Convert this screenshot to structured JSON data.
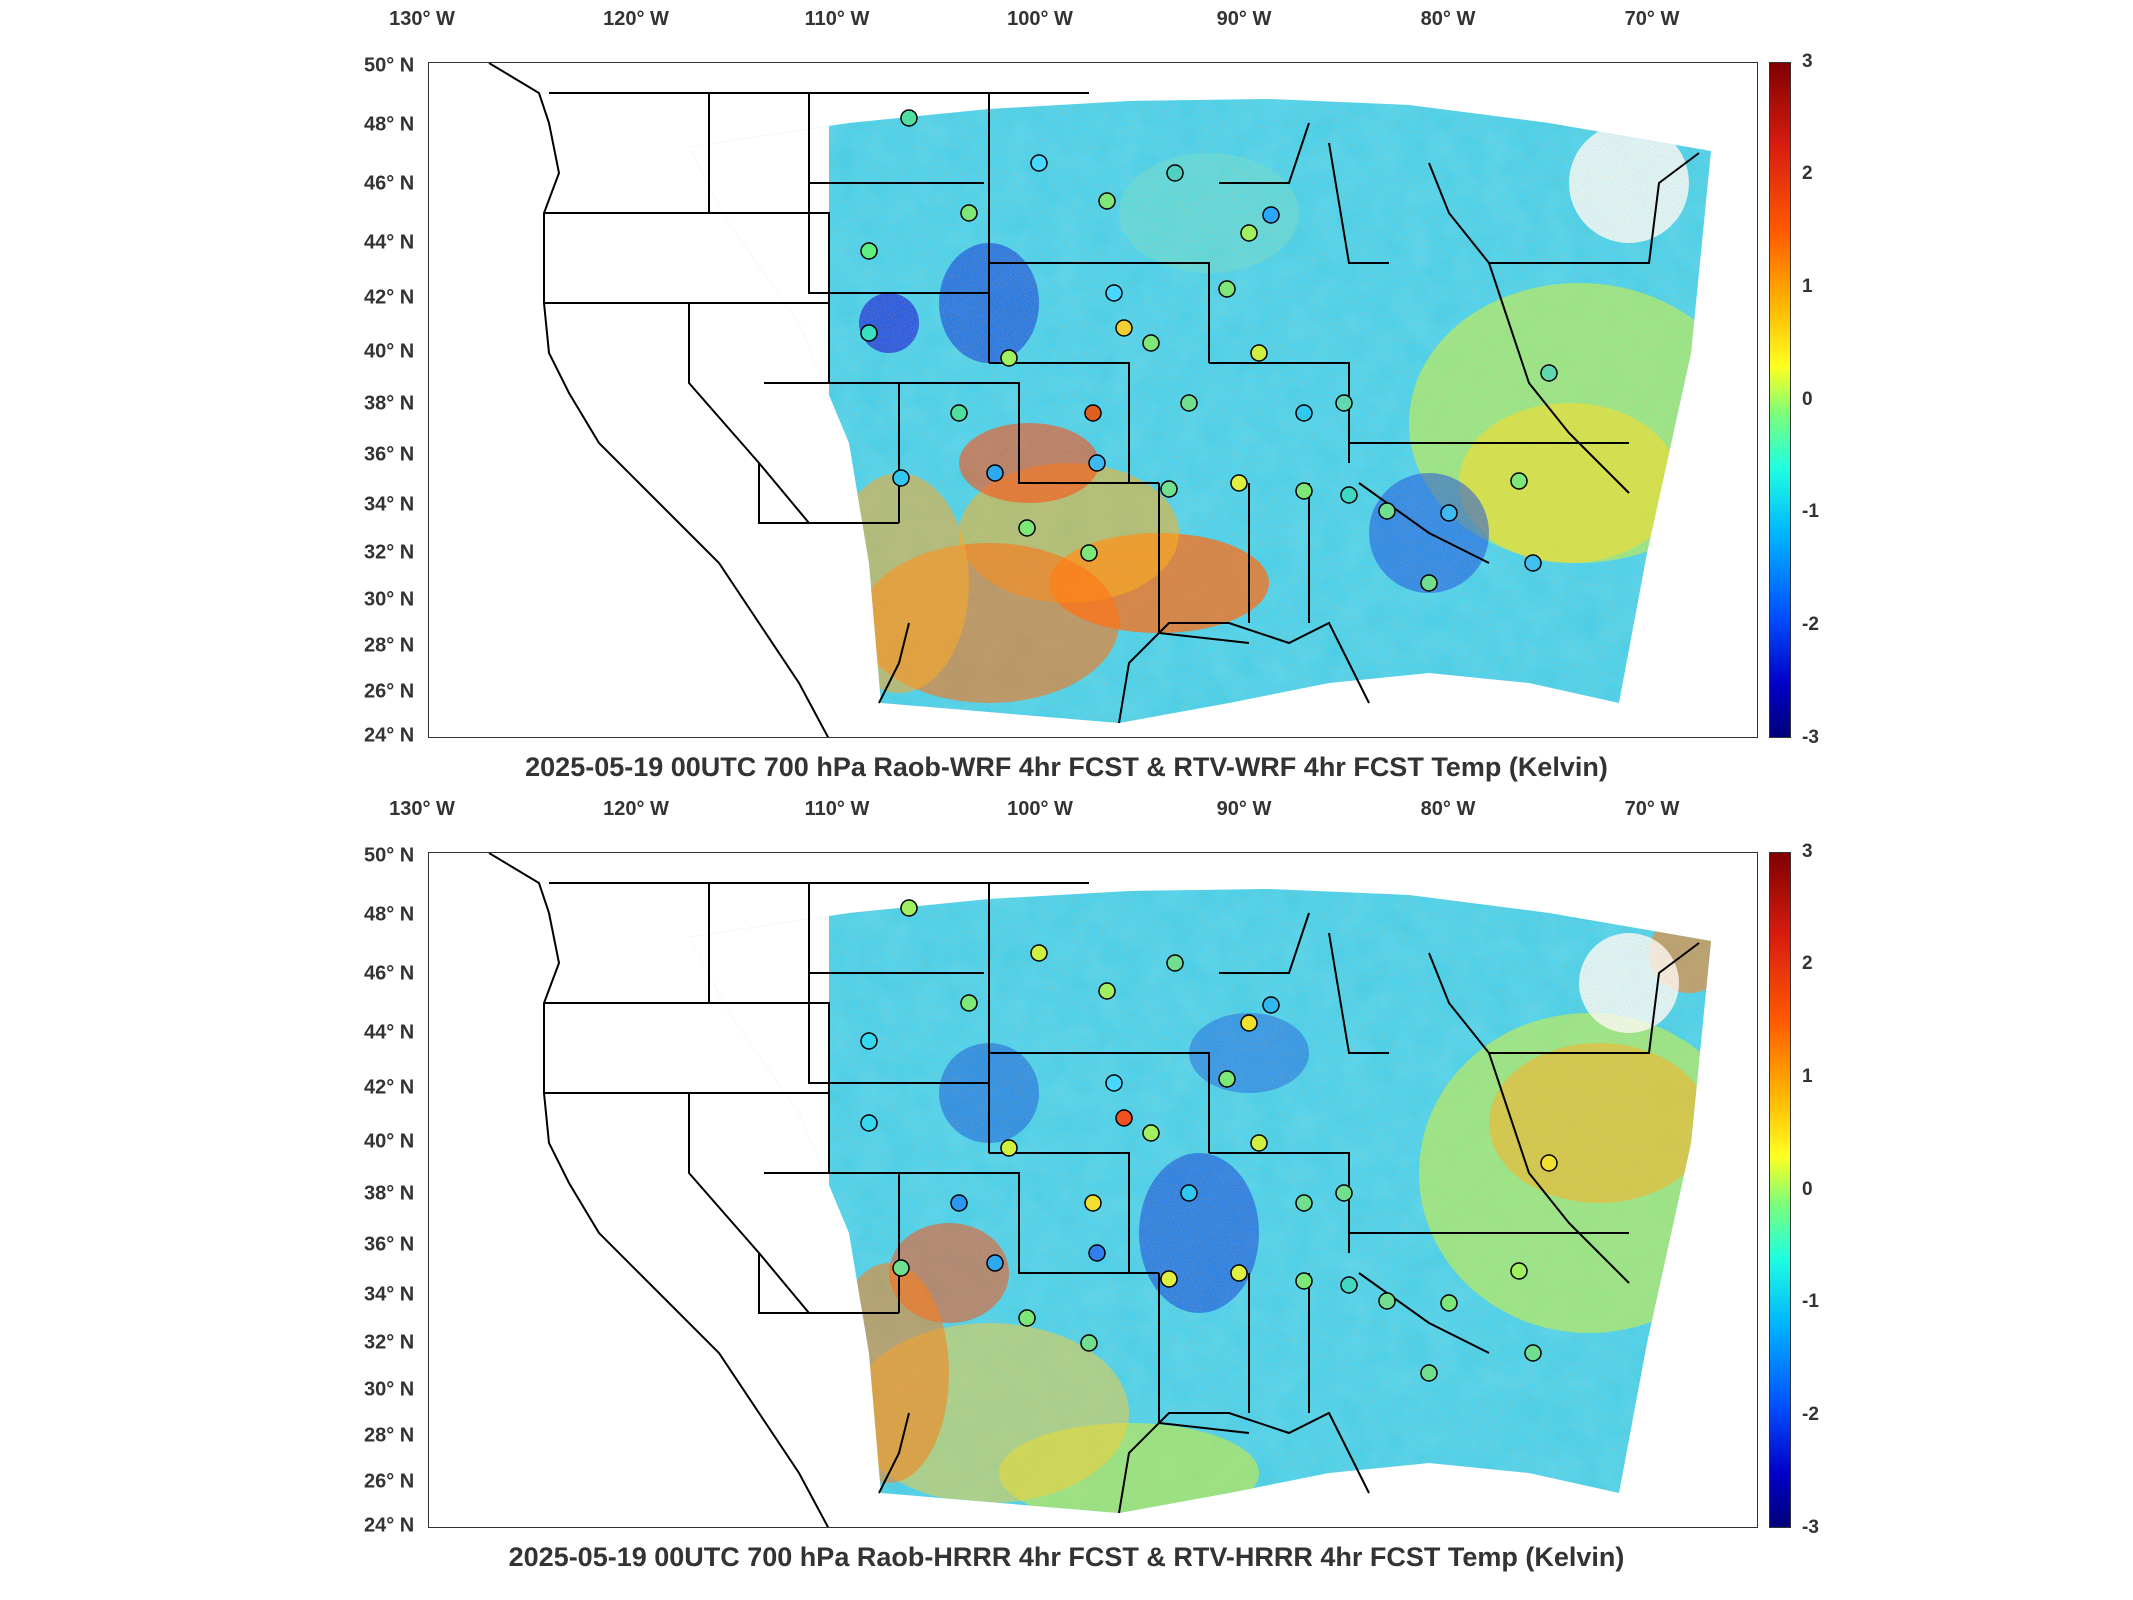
{
  "colors": {
    "colormap": [
      "#00007a",
      "#0000c8",
      "#0050ff",
      "#00b4ff",
      "#20ffe0",
      "#7dff78",
      "#ffff20",
      "#ffae00",
      "#ff5a00",
      "#d61c0f",
      "#7f0000"
    ]
  },
  "axes": {
    "lon_labels": [
      "130° W",
      "120° W",
      "110° W",
      "100° W",
      "90° W",
      "80° W",
      "70° W"
    ],
    "lat_labels": [
      "50° N",
      "48° N",
      "46° N",
      "44° N",
      "42° N",
      "40° N",
      "38° N",
      "36° N",
      "34° N",
      "32° N",
      "30° N",
      "28° N",
      "26° N",
      "24° N"
    ]
  },
  "colorbar": {
    "ticks": [
      "3",
      "2",
      "1",
      "0",
      "-1",
      "-2",
      "-3"
    ],
    "range": [
      -3,
      3
    ],
    "units": "Kelvin"
  },
  "panels": [
    {
      "title": "2025-05-19 00UTC 700 hPa Raob-WRF 4hr FCST & RTV-WRF 4hr FCST Temp (Kelvin)",
      "model": "WRF"
    },
    {
      "title": "2025-05-19 00UTC 700 hPa Raob-HRRR 4hr FCST & RTV-HRRR 4hr FCST Temp (Kelvin)",
      "model": "HRRR"
    }
  ]
}
